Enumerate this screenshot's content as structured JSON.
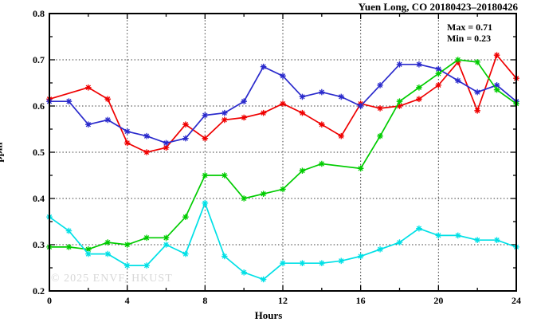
{
  "title": "Yuen Long, CO 20180423–20180426",
  "annotation": {
    "max_label": "Max = 0.71",
    "min_label": "Min = 0.23"
  },
  "watermark": "© 2025  ENVF, HKUST",
  "chart_data": {
    "type": "line",
    "title": "Yuen Long, CO 20180423–20180426",
    "xlabel": "Hours",
    "ylabel": "ppm",
    "xlim": [
      0,
      24
    ],
    "ylim": [
      0.2,
      0.8
    ],
    "x_major_ticks": [
      0,
      4,
      8,
      12,
      16,
      20,
      24
    ],
    "x_minor_ticks": [
      2,
      6,
      10,
      14,
      18,
      22
    ],
    "y_major_ticks": [
      0.2,
      0.3,
      0.4,
      0.5,
      0.6,
      0.7,
      0.8
    ],
    "y_minor_ticks": [
      0.25,
      0.35,
      0.45,
      0.55,
      0.65,
      0.75
    ],
    "grid": "dotted lines at x majors 4-20 and y majors 0.3-0.7",
    "legend_position": "none",
    "marker": "asterisk-star",
    "x": [
      0,
      1,
      2,
      3,
      4,
      5,
      6,
      7,
      8,
      9,
      10,
      11,
      12,
      13,
      14,
      15,
      16,
      17,
      18,
      19,
      20,
      21,
      22,
      23,
      24
    ],
    "series": [
      {
        "name": "red-line",
        "color": "#ef0000",
        "values": [
          0.615,
          null,
          0.64,
          0.615,
          0.52,
          0.5,
          0.51,
          0.56,
          0.53,
          0.57,
          0.575,
          0.585,
          0.605,
          0.585,
          0.56,
          0.535,
          0.605,
          0.595,
          0.6,
          0.615,
          0.645,
          0.695,
          0.59,
          0.71,
          0.66
        ]
      },
      {
        "name": "blue-line",
        "color": "#2a2acc",
        "values": [
          0.61,
          0.61,
          0.56,
          0.57,
          0.545,
          0.535,
          0.52,
          0.53,
          0.58,
          0.585,
          0.61,
          0.685,
          0.665,
          0.62,
          0.63,
          0.62,
          0.6,
          0.645,
          0.69,
          0.69,
          0.68,
          0.655,
          0.63,
          0.645,
          0.61
        ]
      },
      {
        "name": "green-line",
        "color": "#00cc00",
        "values": [
          0.295,
          0.295,
          0.29,
          0.305,
          0.3,
          0.315,
          0.315,
          0.36,
          0.45,
          0.45,
          0.4,
          0.41,
          0.42,
          0.46,
          0.475,
          null,
          0.465,
          0.535,
          0.61,
          0.64,
          0.67,
          0.7,
          0.695,
          0.635,
          0.605
        ]
      },
      {
        "name": "cyan-line",
        "color": "#00e0e6",
        "values": [
          0.36,
          0.33,
          0.28,
          0.28,
          0.255,
          0.255,
          0.3,
          0.28,
          0.39,
          0.275,
          0.24,
          0.225,
          0.26,
          0.26,
          0.26,
          0.265,
          0.275,
          0.29,
          0.305,
          0.335,
          0.32,
          0.32,
          0.31,
          0.31,
          0.295
        ]
      }
    ],
    "stats": {
      "max": 0.71,
      "min": 0.23
    }
  }
}
